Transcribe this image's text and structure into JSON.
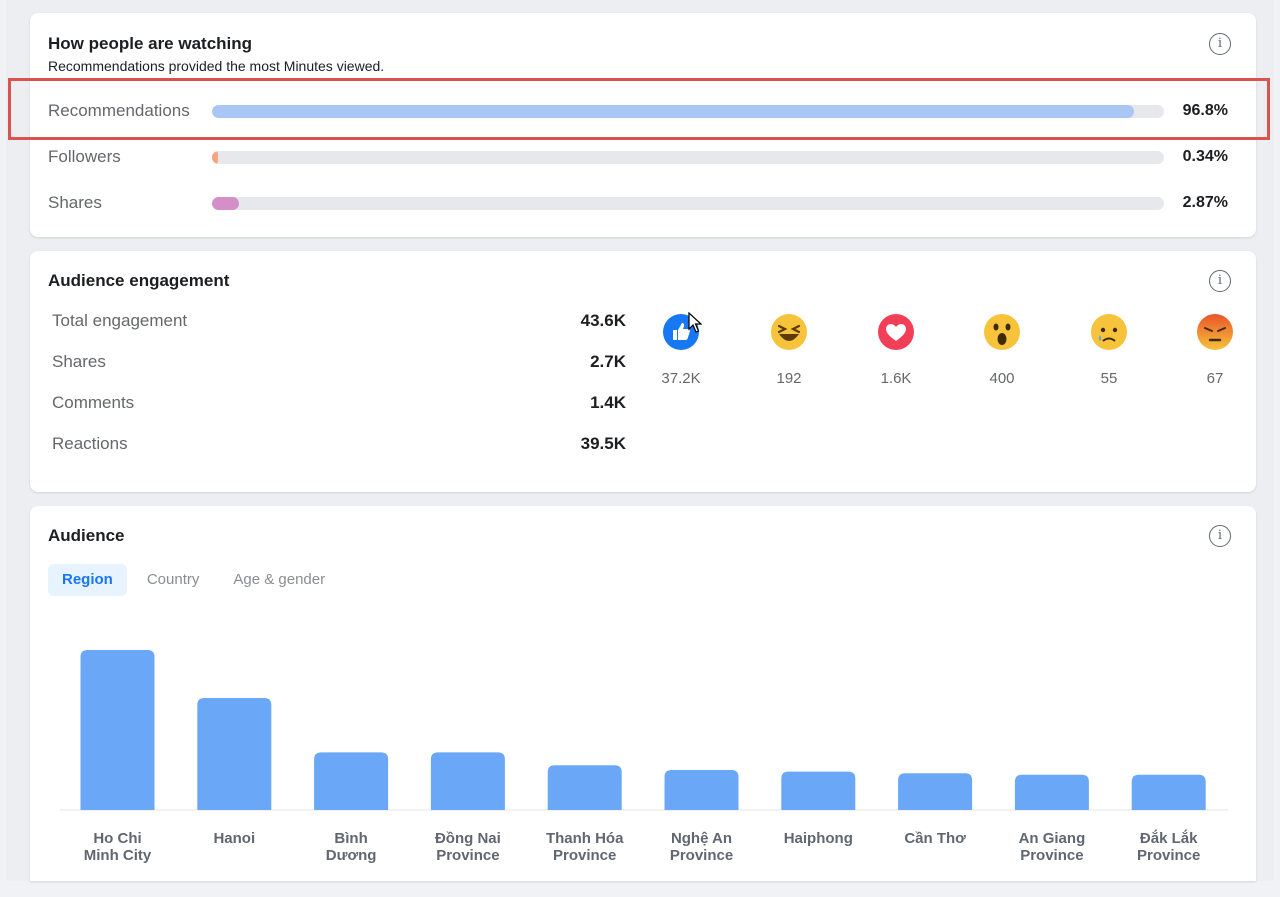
{
  "watching": {
    "title": "How people are watching",
    "subtitle": "Recommendations provided the most Minutes viewed.",
    "sources": [
      {
        "label": "Recommendations",
        "value": 96.8,
        "pct": "96.8%",
        "color": "#a9c6f5"
      },
      {
        "label": "Followers",
        "value": 0.34,
        "pct": "0.34%",
        "color": "#f4a582"
      },
      {
        "label": "Shares",
        "value": 2.87,
        "pct": "2.87%",
        "color": "#d58fc8"
      }
    ]
  },
  "engagement": {
    "title": "Audience engagement",
    "rows": [
      {
        "label": "Total engagement",
        "value": "43.6K"
      },
      {
        "label": "Shares",
        "value": "2.7K"
      },
      {
        "label": "Comments",
        "value": "1.4K"
      },
      {
        "label": "Reactions",
        "value": "39.5K"
      }
    ],
    "reactions": [
      {
        "icon": "like-icon",
        "count": "37.2K"
      },
      {
        "icon": "haha-icon",
        "count": "192"
      },
      {
        "icon": "love-icon",
        "count": "1.6K"
      },
      {
        "icon": "wow-icon",
        "count": "400"
      },
      {
        "icon": "sad-icon",
        "count": "55"
      },
      {
        "icon": "angry-icon",
        "count": "67"
      }
    ]
  },
  "audience": {
    "title": "Audience",
    "tabs": [
      "Region",
      "Country",
      "Age & gender"
    ],
    "active_tab": "Region"
  },
  "chart_data": {
    "type": "bar",
    "categories": [
      "Ho Chi\nMinh City",
      "Hanoi",
      "Bình\nDương",
      "Đồng Nai\nProvince",
      "Thanh Hóa\nProvince",
      "Nghệ An\nProvince",
      "Haiphong",
      "Cần Thơ",
      "An Giang\nProvince",
      "Đắk Lắk\nProvince"
    ],
    "values": [
      100,
      70,
      36,
      36,
      28,
      25,
      24,
      23,
      22,
      22
    ],
    "ylim": [
      0,
      100
    ],
    "bar_color": "#6aa8f7",
    "grid": false
  }
}
